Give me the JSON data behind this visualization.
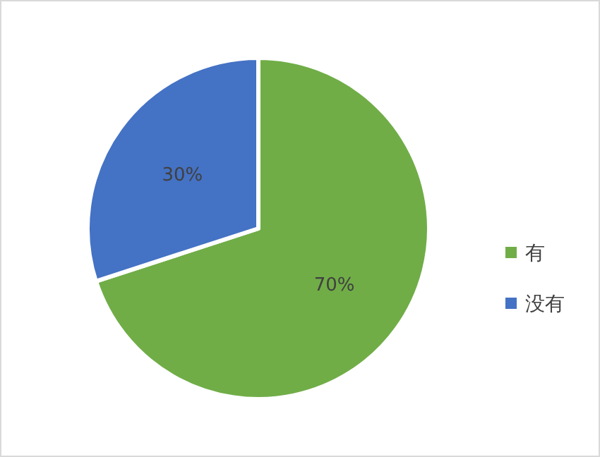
{
  "chart_data": {
    "type": "pie",
    "categories": [
      "有",
      "没有"
    ],
    "values": [
      70,
      30
    ],
    "colors": [
      "#70ad47",
      "#4472c4"
    ],
    "value_labels": [
      "70%",
      "30%"
    ],
    "legend": "right"
  }
}
